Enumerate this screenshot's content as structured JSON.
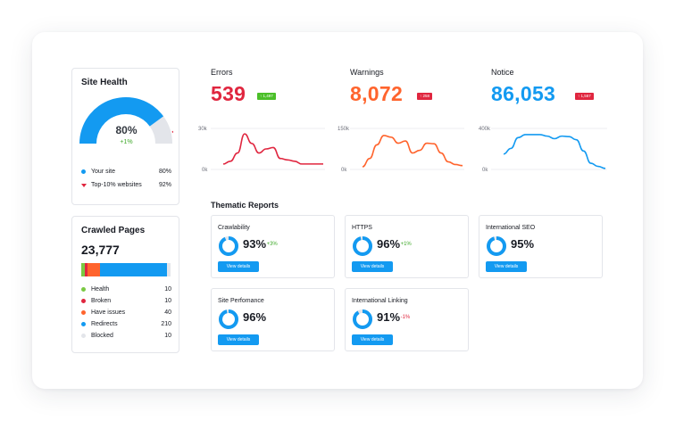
{
  "site_health": {
    "title": "Site Health",
    "value": "80%",
    "delta": "+1%",
    "value_fraction": 0.8,
    "legend": [
      {
        "label": "Your site",
        "value": "80%",
        "color": "#139af1",
        "marker": "dot"
      },
      {
        "label": "Top-10% websites",
        "value": "92%",
        "color": "#e0263f",
        "marker": "triangle"
      }
    ]
  },
  "crawled_pages": {
    "title": "Crawled Pages",
    "total": "23,777",
    "items": [
      {
        "label": "Health",
        "value": "10",
        "count": 10,
        "color": "#7ac943"
      },
      {
        "label": "Broken",
        "value": "10",
        "count": 10,
        "color": "#e0263f"
      },
      {
        "label": "Have issues",
        "value": "40",
        "count": 40,
        "color": "#ff642d"
      },
      {
        "label": "Redirects",
        "value": "210",
        "count": 210,
        "color": "#139af1"
      },
      {
        "label": "Blocked",
        "value": "10",
        "count": 10,
        "color": "#e3e5ea"
      }
    ]
  },
  "metrics": [
    {
      "label": "Errors",
      "value": "539",
      "badge": "↑ 1,497",
      "color": "#e0263f",
      "badge_color": "#4bbf29",
      "y_top": "30k",
      "y_bottom": "0k",
      "series": [
        4,
        6,
        12,
        26,
        19,
        12,
        15,
        16,
        8,
        7,
        6,
        4,
        4,
        4,
        4
      ]
    },
    {
      "label": "Warnings",
      "value": "8,072",
      "badge": "↑ 258",
      "color": "#ff642d",
      "badge_color": "#e0263f",
      "y_top": "150k",
      "y_bottom": "0k",
      "series": [
        10,
        40,
        90,
        124,
        118,
        96,
        104,
        60,
        70,
        96,
        94,
        60,
        28,
        18,
        14
      ]
    },
    {
      "label": "Notice",
      "value": "86,053",
      "badge": "↑ 1,567",
      "color": "#139af1",
      "badge_color": "#e0263f",
      "y_top": "400k",
      "y_bottom": "0k",
      "series": [
        150,
        205,
        310,
        340,
        340,
        340,
        325,
        300,
        325,
        320,
        290,
        180,
        60,
        30,
        10
      ]
    }
  ],
  "thematic": {
    "title": "Thematic Reports",
    "button_label": "View details",
    "cards": [
      {
        "title": "Crawlability",
        "pct": "93%",
        "value": 0.93,
        "delta": "+3%",
        "delta_color": "#3fa92a"
      },
      {
        "title": "HTTPS",
        "pct": "96%",
        "value": 0.96,
        "delta": "+1%",
        "delta_color": "#3fa92a"
      },
      {
        "title": "International SEO",
        "pct": "95%",
        "value": 0.95,
        "delta": "",
        "delta_color": "#3fa92a"
      },
      {
        "title": "Site Perfomance",
        "pct": "96%",
        "value": 0.96,
        "delta": "",
        "delta_color": "#3fa92a"
      },
      {
        "title": "International Linking",
        "pct": "91%",
        "value": 0.91,
        "delta": "-1%",
        "delta_color": "#e0263f"
      }
    ]
  }
}
